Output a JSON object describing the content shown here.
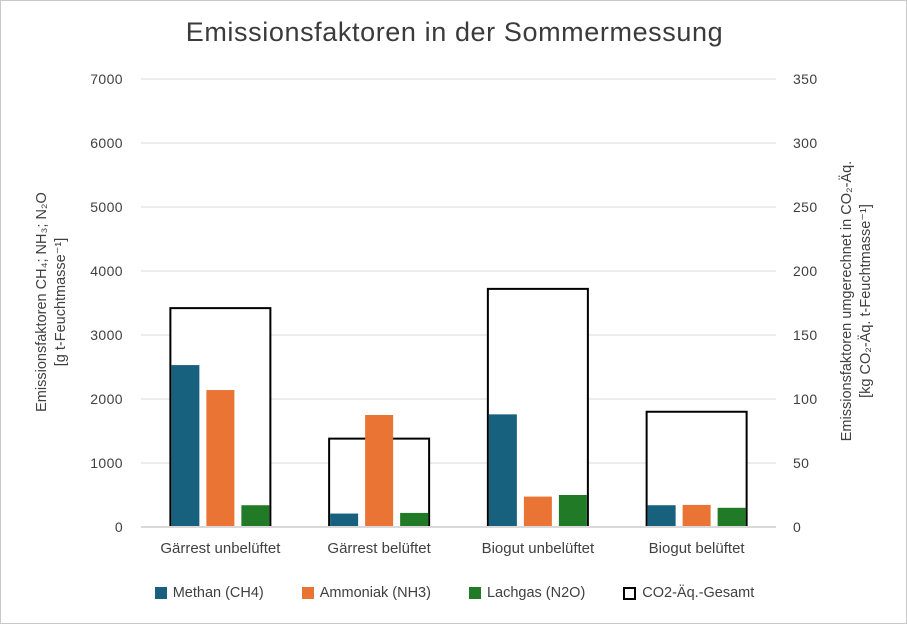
{
  "chart_data": {
    "type": "bar",
    "title": "Emissionsfaktoren in der Sommermessung",
    "categories": [
      "Gärrest unbelüftet",
      "Gärrest belüftet",
      "Biogut unbelüftet",
      "Biogut belüftet"
    ],
    "series": [
      {
        "key": "methan",
        "name": "Methan (CH4)",
        "axis": "left",
        "color": "#17607E",
        "values": [
          2530,
          210,
          1760,
          340
        ]
      },
      {
        "key": "ammoniak",
        "name": "Ammoniak (NH3)",
        "axis": "left",
        "color": "#EA7434",
        "values": [
          2140,
          1750,
          475,
          345
        ]
      },
      {
        "key": "lachgas",
        "name": "Lachgas (N2O)",
        "axis": "left",
        "color": "#217A25",
        "values": [
          340,
          220,
          500,
          300
        ]
      },
      {
        "key": "co2",
        "name": "CO2-Äq.-Gesamt",
        "axis": "right",
        "color": "#FFFFFF",
        "border_color": "#000000",
        "values": [
          171,
          69,
          186,
          90
        ]
      }
    ],
    "left_axis": {
      "label_line1": "Emissionsfaktoren CH₄; NH₃; N₂O",
      "label_line2": "[g t-Feuchtmasse⁻¹]",
      "min": 0,
      "max": 7000,
      "step": 1000,
      "ticks": [
        "0",
        "1000",
        "2000",
        "3000",
        "4000",
        "5000",
        "6000",
        "7000"
      ]
    },
    "right_axis": {
      "label_line1": "Emissionsfaktoren umgerechnet in CO₂-Äq.",
      "label_line2": "[kg CO₂-Äq. t-Feuchtmasse⁻¹]",
      "min": 0,
      "max": 350,
      "step": 50,
      "ticks": [
        "0",
        "50",
        "100",
        "150",
        "200",
        "250",
        "300",
        "350"
      ]
    },
    "grid": true,
    "legend_position": "bottom",
    "colors": {
      "grid": "#D9D9D9",
      "baseline": "#D9D9D9",
      "text": "#404040",
      "title": "#3B3B3B",
      "outline": "#000000",
      "background": "#FFFFFF"
    }
  }
}
